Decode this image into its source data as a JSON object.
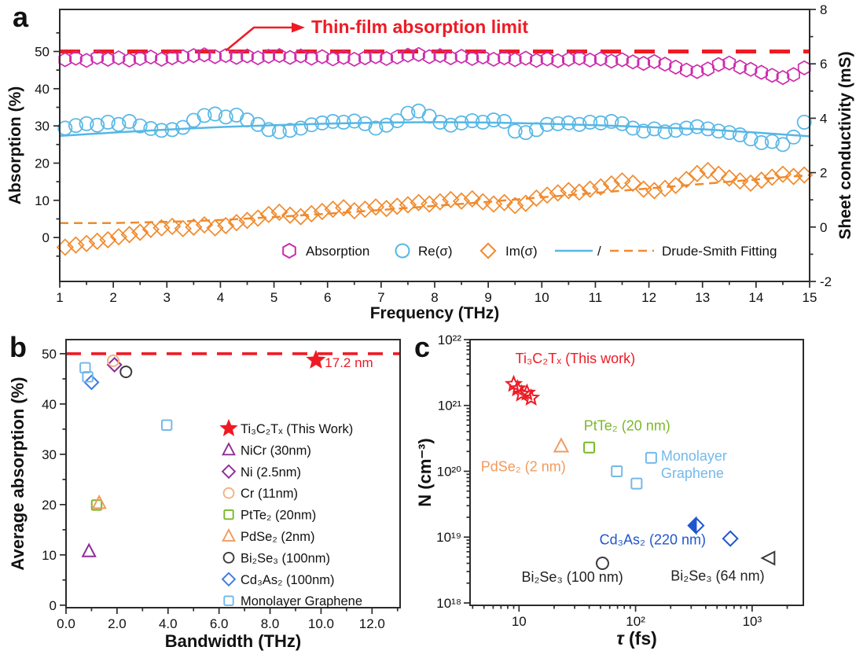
{
  "figure": {
    "panels": [
      {
        "letter": "a"
      },
      {
        "letter": "b"
      },
      {
        "letter": "c"
      }
    ]
  },
  "colors": {
    "magenta": "#CC2CAC",
    "sky_blue": "#56B7E6",
    "orange": "#F08A2D",
    "red": "#EE1B24",
    "purple": "#8E2C96",
    "peach": "#F4B183",
    "green": "#7AB829",
    "pdse_orange": "#F29A5E",
    "cd3as2_blue": "#3D7BE0",
    "cd3as2_deep": "#2056CE",
    "graphene_blue": "#74B9E9",
    "dark": "#3A3A3A",
    "axis": "#2B2B2B"
  },
  "chart_data": [
    {
      "id": "a",
      "type": "scatter",
      "grid": false,
      "x_axis": {
        "title": "Frequency (THz)",
        "min": 1,
        "max": 15,
        "major_ticks": [
          1,
          2,
          3,
          4,
          5,
          6,
          7,
          8,
          9,
          10,
          11,
          12,
          13,
          14,
          15
        ],
        "minor_step": 0.5
      },
      "y_left": {
        "title": "Absorption (%)",
        "min": -11.8,
        "max": 61.3,
        "major_ticks": [
          0,
          10,
          20,
          30,
          40,
          50
        ],
        "minor_step": 5
      },
      "y_right": {
        "title": "Sheet conductivity (mS)",
        "min": -2,
        "max": 8,
        "major_ticks": [
          -2,
          0,
          2,
          4,
          6,
          8
        ],
        "minor_step": 1
      },
      "annotation": {
        "text": "Thin-film absorption limit",
        "limit_value": 50
      },
      "x": [
        1.1,
        1.3,
        1.5,
        1.7,
        1.9,
        2.1,
        2.3,
        2.5,
        2.7,
        2.9,
        3.1,
        3.3,
        3.5,
        3.7,
        3.9,
        4.1,
        4.3,
        4.5,
        4.7,
        4.9,
        5.1,
        5.3,
        5.5,
        5.7,
        5.9,
        6.1,
        6.3,
        6.5,
        6.7,
        6.9,
        7.1,
        7.3,
        7.5,
        7.7,
        7.9,
        8.1,
        8.3,
        8.5,
        8.7,
        8.9,
        9.1,
        9.3,
        9.5,
        9.7,
        9.9,
        10.1,
        10.3,
        10.5,
        10.7,
        10.9,
        11.1,
        11.3,
        11.5,
        11.7,
        11.9,
        12.1,
        12.3,
        12.5,
        12.7,
        12.9,
        13.1,
        13.3,
        13.5,
        13.7,
        13.9,
        14.1,
        14.3,
        14.5,
        14.7,
        14.9
      ],
      "series": [
        {
          "name": "Absorption",
          "marker": "hexagon",
          "color_key": "magenta",
          "values": [
            47.8,
            48.2,
            47.6,
            48.4,
            47.9,
            48.3,
            47.7,
            48.1,
            48.5,
            47.9,
            48.3,
            48.6,
            48.9,
            49.1,
            48.6,
            48.9,
            48.4,
            48.8,
            48.3,
            48.7,
            48.9,
            48.4,
            48.8,
            48.2,
            48.6,
            48.0,
            48.4,
            47.9,
            48.3,
            48.6,
            48.1,
            48.5,
            49.0,
            49.2,
            48.6,
            48.9,
            48.3,
            48.7,
            48.1,
            48.5,
            47.9,
            48.3,
            47.8,
            48.2,
            47.6,
            48.0,
            47.5,
            47.9,
            48.2,
            47.7,
            48.0,
            47.4,
            47.8,
            47.2,
            46.8,
            47.3,
            46.6,
            45.8,
            45.0,
            44.6,
            45.3,
            46.5,
            46.9,
            45.8,
            45.2,
            44.4,
            43.6,
            43.0,
            43.8,
            45.6
          ]
        },
        {
          "name": "Re(σ)",
          "marker": "circle",
          "color_key": "sky_blue",
          "values": [
            29.4,
            30.1,
            30.6,
            30.2,
            31.0,
            30.4,
            31.2,
            30.0,
            29.3,
            28.8,
            29.0,
            29.6,
            31.5,
            32.8,
            33.2,
            32.4,
            32.9,
            31.6,
            30.4,
            29.0,
            28.4,
            28.8,
            29.4,
            30.3,
            30.8,
            31.2,
            31.0,
            31.3,
            30.6,
            29.4,
            30.2,
            31.4,
            33.4,
            34.0,
            32.6,
            31.0,
            30.2,
            30.8,
            31.4,
            31.0,
            31.6,
            31.2,
            28.6,
            28.2,
            29.0,
            30.4,
            30.6,
            30.8,
            30.4,
            31.0,
            30.8,
            31.2,
            30.6,
            29.4,
            28.6,
            29.2,
            28.4,
            28.8,
            29.4,
            29.8,
            29.2,
            28.6,
            28.2,
            27.6,
            26.5,
            25.5,
            25.8,
            25.0,
            27.0,
            31.0
          ]
        },
        {
          "name": "Im(σ)",
          "marker": "diamond",
          "color_key": "orange",
          "values": [
            -2.6,
            -2.0,
            -1.6,
            -1.0,
            -0.6,
            0.2,
            0.8,
            1.4,
            2.2,
            2.6,
            3.0,
            2.4,
            2.8,
            3.4,
            2.6,
            3.2,
            4.0,
            4.6,
            5.2,
            6.2,
            6.8,
            6.0,
            5.6,
            6.4,
            7.0,
            7.6,
            8.0,
            7.2,
            7.6,
            8.2,
            7.8,
            8.4,
            8.8,
            9.4,
            9.0,
            9.6,
            10.2,
            9.8,
            10.4,
            9.6,
            9.0,
            9.4,
            8.6,
            9.2,
            10.6,
            11.4,
            12.0,
            12.6,
            12.2,
            13.0,
            13.6,
            14.4,
            15.2,
            14.6,
            13.0,
            12.6,
            13.2,
            14.0,
            15.6,
            17.2,
            18.0,
            17.0,
            16.0,
            15.2,
            14.6,
            15.4,
            16.2,
            17.0,
            16.4,
            16.8
          ]
        }
      ],
      "fits": [
        {
          "name": "Drude-Smith fit Re",
          "style": "solid",
          "color_key": "sky_blue",
          "x": [
            1,
            2,
            3,
            4,
            5,
            6,
            7,
            8,
            9,
            10,
            11,
            12,
            13,
            14,
            15
          ],
          "y": [
            27.3,
            28.2,
            29.0,
            29.7,
            30.2,
            30.6,
            30.9,
            31.0,
            30.9,
            30.6,
            30.2,
            29.7,
            29.1,
            28.2,
            27.2
          ]
        },
        {
          "name": "Drude-Smith fit Im",
          "style": "dashed",
          "color_key": "orange",
          "x": [
            1,
            2,
            3,
            4,
            5,
            6,
            7,
            8,
            9,
            10,
            11,
            12,
            13,
            14,
            15
          ],
          "y": [
            3.9,
            3.9,
            4.2,
            4.7,
            5.5,
            6.4,
            7.4,
            8.5,
            9.6,
            10.8,
            12.0,
            13.2,
            14.4,
            15.6,
            16.8
          ]
        }
      ],
      "legend": {
        "position": "inside-bottom",
        "items": [
          {
            "marker": "hexagon",
            "color_key": "magenta",
            "label": "Absorption"
          },
          {
            "marker": "circle",
            "color_key": "sky_blue",
            "label": "Re(σ)"
          },
          {
            "marker": "diamond",
            "color_key": "orange",
            "label": "Im(σ)"
          },
          {
            "marker": "fitlines",
            "separator": "/",
            "label": "Drude-Smith Fitting"
          }
        ]
      }
    },
    {
      "id": "b",
      "type": "scatter",
      "grid": false,
      "x_axis": {
        "title": "Bandwidth (THz)",
        "min": 0,
        "max": 13.1,
        "major_ticks": [
          0,
          2,
          4,
          6,
          8,
          10,
          12
        ],
        "tick_labels": [
          "0.0",
          "2.0",
          "4.0",
          "6.0",
          "8.0",
          "10.0",
          "12.0"
        ],
        "minor_step": 1
      },
      "y_axis": {
        "title": "Average absorption (%)",
        "min": -0.5,
        "max": 52.8,
        "major_ticks": [
          0,
          10,
          20,
          30,
          40,
          50
        ],
        "minor_step": 5
      },
      "limit_line": {
        "value": 50
      },
      "series": [
        {
          "label": "Ti₃C₂Tₓ (This Work)",
          "marker": "star",
          "filled": true,
          "color_key": "red",
          "points": [
            [
              9.8,
              48.7
            ]
          ],
          "point_label": {
            "text": "17.2 nm",
            "x": 10.15,
            "y": 48.3
          }
        },
        {
          "label": "NiCr (30nm)",
          "marker": "triangle",
          "color_key": "purple",
          "points": [
            [
              0.9,
              10.7
            ]
          ]
        },
        {
          "label": "Ni (2.5nm)",
          "marker": "diamond",
          "color_key": "purple",
          "points": [
            [
              1.9,
              47.8
            ]
          ]
        },
        {
          "label": "Cr (11nm)",
          "marker": "circle",
          "color_key": "peach",
          "points": [
            [
              1.85,
              48.6
            ]
          ]
        },
        {
          "label": "PtTe₂ (20nm)",
          "marker": "square",
          "color_key": "green",
          "points": [
            [
              1.2,
              19.9
            ]
          ]
        },
        {
          "label": "PdSe₂ (2nm)",
          "marker": "triangle",
          "color_key": "pdse_orange",
          "points": [
            [
              1.3,
              20.3
            ]
          ]
        },
        {
          "label": "Bi₂Se₃ (100nm)",
          "marker": "circle",
          "color_key": "dark",
          "points": [
            [
              2.35,
              46.4
            ]
          ]
        },
        {
          "label": "Cd₃As₂ (100nm)",
          "marker": "diamond",
          "color_key": "cd3as2_blue",
          "points": [
            [
              1.0,
              44.3
            ]
          ]
        },
        {
          "label": "Monolayer Graphene",
          "marker": "square",
          "color_key": "graphene_blue",
          "points": [
            [
              0.75,
              47.2
            ],
            [
              0.85,
              45.4
            ],
            [
              3.95,
              35.8
            ]
          ]
        }
      ],
      "legend": {
        "position": "inside-right"
      }
    },
    {
      "id": "c",
      "type": "scatter",
      "grid": false,
      "x_axis": {
        "title": "τ (fs)",
        "scale": "log",
        "min": 3.8,
        "max": 2750,
        "major_ticks": [
          10,
          100,
          1000
        ],
        "tick_labels": [
          "10",
          "10²",
          "10³"
        ]
      },
      "y_axis": {
        "title": "N (cm⁻³)",
        "scale": "log",
        "min": 9.2e+17,
        "max": 1e+22,
        "major_ticks": [
          1e+18,
          1e+19,
          1e+20,
          1e+21,
          1e+22
        ],
        "tick_labels": [
          "10¹⁸",
          "10¹⁹",
          "10²⁰",
          "10²¹",
          "10²²"
        ]
      },
      "series": [
        {
          "label": "Ti₃C₂Tₓ (This work)",
          "marker": "star",
          "color_key": "red",
          "points": [
            [
              9,
              2.1e+21
            ],
            [
              9.7,
              1.8e+21
            ],
            [
              10.5,
              1.5e+21
            ],
            [
              11.7,
              1.55e+21
            ],
            [
              12.7,
              1.3e+21
            ]
          ],
          "label_pos": [
            9.3,
            4.4e+21
          ]
        },
        {
          "label": "PdSe₂ (2 nm)",
          "marker": "triangle",
          "color_key": "pdse_orange",
          "points": [
            [
              23,
              2.4e+20
            ]
          ],
          "label_pos": [
            4.7,
            1e+20
          ]
        },
        {
          "label": "PtTe₂ (20 nm)",
          "marker": "square",
          "color_key": "green",
          "points": [
            [
              40,
              2.3e+20
            ]
          ],
          "label_pos": [
            36,
            4.2e+20
          ]
        },
        {
          "label": "Monolayer\nGraphene",
          "marker": "square",
          "color_key": "graphene_blue",
          "points": [
            [
              69,
              1e+20
            ],
            [
              136,
              1.6e+20
            ],
            [
              102,
              6.5e+19
            ]
          ],
          "label_pos": [
            165,
            1.45e+20
          ]
        },
        {
          "label": "Cd₃As₂ (220 nm)",
          "marker": "diamond-half",
          "color_key": "cd3as2_deep",
          "points": [
            [
              330,
              1.5e+19
            ]
          ],
          "label_pos": [
            49,
            7.8e+18
          ]
        },
        {
          "label": "",
          "marker": "diamond",
          "color_key": "cd3as2_deep",
          "points": [
            [
              650,
              9.5e+18
            ]
          ]
        },
        {
          "label": "Bi₂Se₃ (100 nm)",
          "marker": "circle",
          "color_key": "dark",
          "points": [
            [
              52,
              4e+18
            ]
          ],
          "label_pos": [
            10.5,
            2.1e+18
          ]
        },
        {
          "label": "Bi₂Se₃ (64 nm)",
          "marker": "triangle-left",
          "color_key": "dark",
          "points": [
            [
              1400,
              4.8e+18
            ]
          ],
          "label_pos": [
            200,
            2.2e+18
          ]
        }
      ]
    }
  ]
}
